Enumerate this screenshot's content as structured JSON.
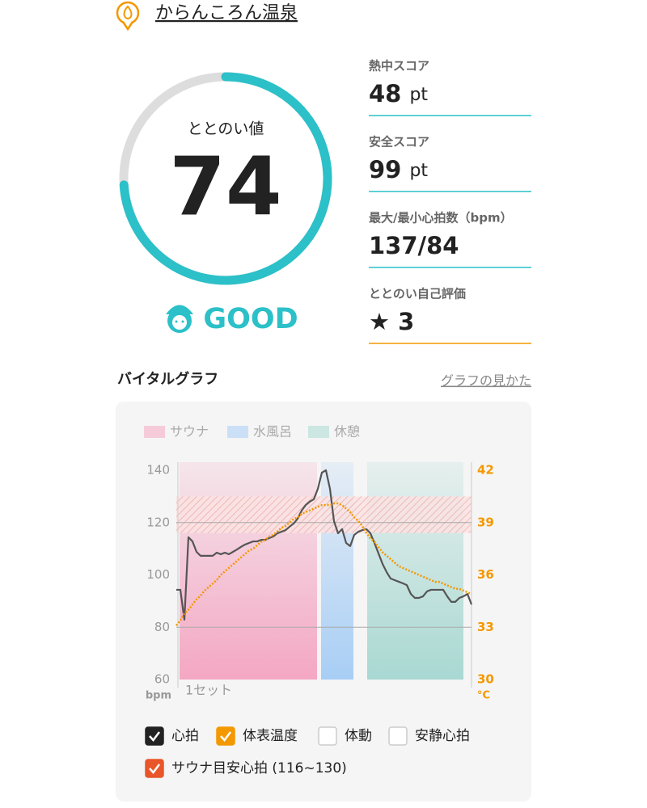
{
  "header": {
    "title": "からんころん温泉"
  },
  "gauge": {
    "label": "ととのい値",
    "value": 74,
    "max": 100,
    "rating": "GOOD",
    "color": "#2cc0c8",
    "track_color": "#dddddd"
  },
  "scores": [
    {
      "label": "熱中スコア",
      "value": 48,
      "unit": "pt"
    },
    {
      "label": "安全スコア",
      "value": 99,
      "unit": "pt"
    },
    {
      "label": "最大/最小心拍数（bpm）",
      "value": "137/84"
    },
    {
      "label": "ととのい自己評価",
      "icon": "★",
      "value": 3
    }
  ],
  "section": {
    "title": "バイタルグラフ",
    "link": "グラフの見かた"
  },
  "chart_data": {
    "type": "line",
    "phases": [
      {
        "name": "サウナ",
        "color": "#f4a7c3",
        "start": 0.8,
        "end": 34.8
      },
      {
        "name": "水風呂",
        "color": "#a8cef5",
        "start": 35.8,
        "end": 43.8
      },
      {
        "name": "休憩",
        "color": "#a9d8d2",
        "start": 47.2,
        "end": 71
      }
    ],
    "xlim": [
      0,
      73
    ],
    "xlabel": "1セット",
    "ylim": [
      60,
      140
    ],
    "yticks": [
      60,
      80,
      100,
      120,
      140
    ],
    "ylabel": "bpm",
    "y2lim": [
      30,
      42
    ],
    "y2ticks": [
      30,
      33,
      36,
      39,
      42
    ],
    "y2label": "°C",
    "grid_lines": [
      80,
      120
    ],
    "series": [
      {
        "name": "心拍",
        "color": "#555555",
        "checked": true,
        "values": [
          94.3,
          94.3,
          82.9,
          114.4,
          112.8,
          108.8,
          107.3,
          107.3,
          107.3,
          107.3,
          108.5,
          107.9,
          108.5,
          107.9,
          108.8,
          109.7,
          110.7,
          111.6,
          112.2,
          112.8,
          112.8,
          113.4,
          113.4,
          114.1,
          114.7,
          115.9,
          116.5,
          117.1,
          118.4,
          119.6,
          121.5,
          124.6,
          126.7,
          128.0,
          128.9,
          132.9,
          139.1,
          140,
          132.9,
          120.5,
          115.9,
          117.5,
          112.2,
          111.0,
          115.3,
          116.5,
          117.1,
          117.5,
          115.9,
          112.2,
          108.2,
          104.2,
          101.1,
          98.6,
          98.0,
          97.4,
          96.8,
          96.1,
          92.7,
          91.2,
          91.2,
          91.8,
          93.7,
          94.3,
          94.3,
          94.3,
          94.3,
          91.8,
          89.7,
          89.7,
          91.2,
          91.8,
          92.7,
          88.7
        ]
      },
      {
        "name": "体表温度",
        "color": "#f39800",
        "checked": true,
        "axis": "y2",
        "values": [
          33.1,
          33.4,
          33.8,
          34.0,
          34.3,
          34.6,
          34.8,
          35.1,
          35.3,
          35.5,
          35.7,
          36.0,
          36.2,
          36.4,
          36.6,
          36.8,
          37.0,
          37.2,
          37.4,
          37.5,
          37.7,
          37.9,
          38.0,
          38.2,
          38.3,
          38.5,
          38.7,
          38.8,
          39.0,
          39.2,
          39.3,
          39.5,
          39.6,
          39.7,
          39.8,
          39.9,
          40.0,
          40.0,
          40.0,
          40.1,
          40.1,
          40.0,
          39.8,
          39.6,
          39.3,
          39.1,
          38.8,
          38.4,
          38.1,
          37.9,
          37.6,
          37.3,
          37.1,
          36.9,
          36.7,
          36.5,
          36.4,
          36.3,
          36.2,
          36.1,
          36.0,
          35.9,
          35.8,
          35.7,
          35.6,
          35.6,
          35.5,
          35.4,
          35.3,
          35.2,
          35.2,
          35.1,
          35.0,
          34.9
        ]
      }
    ],
    "toggles": [
      {
        "label": "体動",
        "checked": false
      },
      {
        "label": "安静心拍",
        "checked": false
      }
    ],
    "target_band": {
      "label": "サウナ目安心拍 (116~130)",
      "range": [
        116,
        130
      ],
      "checked": true,
      "color": "#e8562a"
    }
  }
}
